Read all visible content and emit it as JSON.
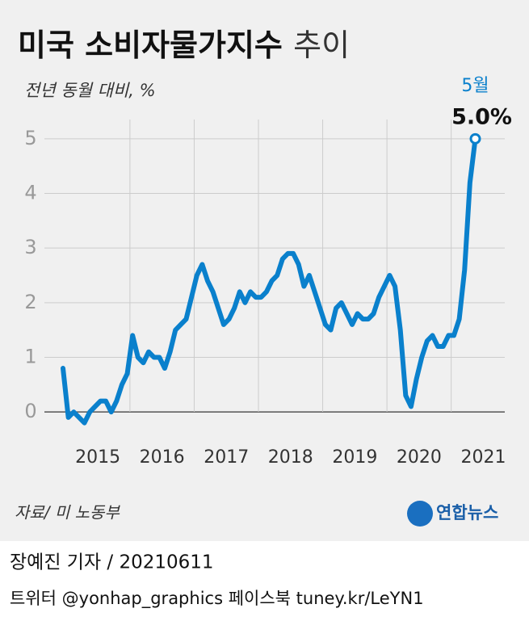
{
  "chart_data": {
    "type": "line",
    "title": "미국 소비자물가지수",
    "title_light": "추이",
    "subtitle": "전년 동월 대비, %",
    "categories": [
      null,
      null,
      null,
      null,
      null,
      null,
      null,
      null,
      null,
      null,
      null,
      null,
      null,
      null,
      null,
      null,
      null,
      null,
      null,
      null,
      null,
      null,
      null,
      null,
      null,
      null,
      null,
      null,
      null,
      null,
      null,
      null,
      null,
      null,
      null,
      null,
      null,
      null,
      null,
      null,
      null,
      null,
      null,
      null,
      null,
      null,
      null,
      null,
      null,
      null,
      null,
      null,
      null,
      null,
      null,
      null,
      null,
      null,
      null,
      null,
      null,
      null,
      null,
      null,
      null,
      null,
      null,
      null,
      null,
      null,
      null,
      null,
      null,
      null,
      null,
      null,
      null,
      "5월"
    ],
    "series": [
      {
        "name": "소비자물가지수",
        "color": "#0a80cc",
        "values": [
          0.8,
          -0.1,
          0.0,
          -0.1,
          -0.2,
          0.0,
          0.1,
          0.2,
          0.2,
          0.0,
          0.2,
          0.5,
          0.7,
          1.4,
          1.0,
          0.9,
          1.1,
          1.0,
          1.0,
          0.8,
          1.1,
          1.5,
          1.6,
          1.7,
          2.1,
          2.5,
          2.7,
          2.4,
          2.2,
          1.9,
          1.6,
          1.7,
          1.9,
          2.2,
          2.0,
          2.2,
          2.1,
          2.1,
          2.2,
          2.4,
          2.5,
          2.8,
          2.9,
          2.9,
          2.7,
          2.3,
          2.5,
          2.2,
          1.9,
          1.6,
          1.5,
          1.9,
          2.0,
          1.8,
          1.6,
          1.8,
          1.7,
          1.7,
          1.8,
          2.1,
          2.3,
          2.5,
          2.3,
          1.5,
          0.3,
          0.1,
          0.6,
          1.0,
          1.3,
          1.4,
          1.2,
          1.2,
          1.4,
          1.4,
          1.7,
          2.6,
          4.2,
          5.0
        ],
        "value_labels": [
          null,
          null,
          null,
          null,
          null,
          null,
          null,
          null,
          null,
          null,
          null,
          null,
          null,
          null,
          null,
          null,
          null,
          null,
          null,
          null,
          null,
          null,
          null,
          null,
          null,
          null,
          null,
          null,
          null,
          null,
          null,
          null,
          null,
          null,
          null,
          null,
          null,
          null,
          null,
          null,
          null,
          null,
          null,
          null,
          null,
          null,
          null,
          null,
          null,
          null,
          null,
          null,
          null,
          null,
          null,
          null,
          null,
          null,
          null,
          null,
          null,
          null,
          null,
          null,
          null,
          null,
          null,
          null,
          null,
          null,
          null,
          null,
          null,
          null,
          null,
          null,
          null,
          "5.0%"
        ]
      }
    ],
    "year_labels": [
      "2015",
      "2016",
      "2017",
      "2018",
      "2019",
      "2020",
      "2021"
    ],
    "ylim": [
      -0.5,
      5.5
    ],
    "yticks": [
      0,
      1,
      2,
      3,
      4,
      5
    ],
    "grid": true,
    "source": "자료/ 미 노동부",
    "logo": "연합뉴스"
  },
  "footer": {
    "byline": "장예진 기자 / 20210611",
    "social": "트위터 @yonhap_graphics  페이스북 tuney.kr/LeYN1"
  }
}
